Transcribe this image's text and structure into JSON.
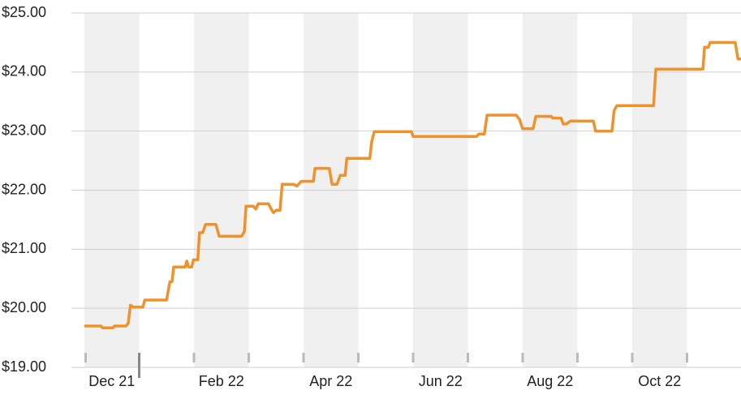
{
  "chart_data": {
    "type": "line",
    "x": [
      0,
      0.3,
      0.33,
      0.52,
      0.55,
      0.76,
      0.8,
      0.84,
      0.89,
      1.07,
      1.1,
      1.5,
      1.56,
      1.6,
      1.63,
      1.84,
      1.87,
      1.9,
      1.96,
      1.99,
      2.07,
      2.1,
      2.16,
      2.21,
      2.4,
      2.46,
      2.87,
      2.92,
      2.95,
      3.08,
      3.13,
      3.17,
      3.36,
      3.41,
      3.45,
      3.5,
      3.57,
      3.61,
      3.82,
      3.88,
      3.96,
      4.18,
      4.21,
      4.47,
      4.52,
      4.61,
      4.67,
      4.76,
      4.79,
      5.21,
      5.24,
      5.29,
      5.97,
      6.0,
      7.16,
      7.2,
      7.3,
      7.35,
      7.88,
      7.94,
      8.0,
      8.19,
      8.24,
      8.52,
      8.55,
      8.7,
      8.74,
      8.8,
      8.87,
      9.29,
      9.33,
      9.63,
      9.67,
      9.72,
      10.39,
      10.43,
      11.29,
      11.32,
      11.39,
      11.42,
      11.88,
      11.93,
      11.99
    ],
    "series": [
      {
        "color": "#f0922b",
        "values": [
          19.7,
          19.7,
          19.67,
          19.67,
          19.7,
          19.7,
          19.75,
          20.05,
          20.02,
          20.02,
          20.14,
          20.14,
          20.45,
          20.45,
          20.7,
          20.7,
          20.8,
          20.7,
          20.7,
          20.82,
          20.82,
          21.28,
          21.28,
          21.42,
          21.42,
          21.22,
          21.22,
          21.3,
          21.73,
          21.73,
          21.68,
          21.77,
          21.77,
          21.68,
          21.62,
          21.66,
          21.66,
          22.1,
          22.1,
          22.07,
          22.15,
          22.15,
          22.37,
          22.37,
          22.1,
          22.1,
          22.25,
          22.25,
          22.54,
          22.54,
          22.8,
          22.99,
          22.99,
          22.91,
          22.91,
          22.95,
          22.95,
          23.27,
          23.27,
          23.2,
          23.04,
          23.04,
          23.25,
          23.25,
          23.22,
          23.22,
          23.12,
          23.12,
          23.17,
          23.17,
          23.0,
          23.0,
          23.35,
          23.43,
          23.43,
          24.05,
          24.05,
          24.42,
          24.42,
          24.5,
          24.5,
          24.22,
          24.22
        ]
      }
    ],
    "xlim": [
      0,
      12
    ],
    "xticks": [
      {
        "value": 0.5,
        "label": "Dec 21"
      },
      {
        "value": 2.5,
        "label": "Feb 22"
      },
      {
        "value": 4.5,
        "label": "Apr 22"
      },
      {
        "value": 6.5,
        "label": "Jun 22"
      },
      {
        "value": 8.5,
        "label": "Aug 22"
      },
      {
        "value": 10.5,
        "label": "Oct 22"
      }
    ],
    "xticks_minor": [
      0,
      1,
      2,
      3,
      4,
      5,
      6,
      7,
      8,
      9,
      10,
      11
    ],
    "xticks_major": [
      1
    ],
    "ylim": [
      19,
      25
    ],
    "yticks": [
      {
        "value": 19,
        "label": "$19.00"
      },
      {
        "value": 20,
        "label": "$20.00"
      },
      {
        "value": 21,
        "label": "$21.00"
      },
      {
        "value": 22,
        "label": "$22.00"
      },
      {
        "value": 23,
        "label": "$23.00"
      },
      {
        "value": 24,
        "label": "$24.00"
      },
      {
        "value": 25,
        "label": "$25.00"
      }
    ],
    "grid": true
  }
}
